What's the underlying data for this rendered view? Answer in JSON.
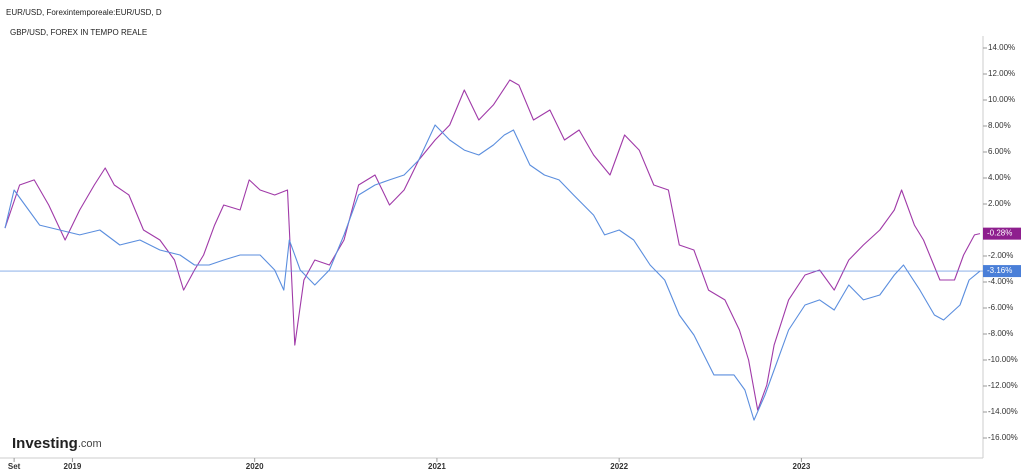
{
  "chart_data": {
    "type": "line",
    "title": "EUR/USD, Forexintemporeale:EUR/USD, D",
    "subtitle": "GBP/USD, FOREX IN TEMPO REALE",
    "brand": "Investing",
    "brand_suffix": ".com",
    "xlim": [
      2018.63,
      2023.98
    ],
    "xticks": [
      {
        "value": 2018.68,
        "label": "Set"
      },
      2019,
      2020,
      2021,
      2022,
      2023
    ],
    "ylim": [
      -17,
      15
    ],
    "yticks": [
      {
        "value": 14,
        "label": "14.00%"
      },
      {
        "value": 12,
        "label": "12.00%"
      },
      {
        "value": 10,
        "label": "10.00%"
      },
      {
        "value": 8,
        "label": "8.00%"
      },
      {
        "value": 6,
        "label": "6.00%"
      },
      {
        "value": 4,
        "label": "4.00%"
      },
      {
        "value": 2,
        "label": "2.00%"
      },
      {
        "value": -2,
        "label": "-2.00%"
      },
      {
        "value": -4,
        "label": "-4.00%"
      },
      {
        "value": -6,
        "label": "-6.00%"
      },
      {
        "value": -8,
        "label": "-8.00%"
      },
      {
        "value": -10,
        "label": "-10.00%"
      },
      {
        "value": -12,
        "label": "-12.00%"
      },
      {
        "value": -14,
        "label": "-14.00%"
      },
      {
        "value": -16,
        "label": "-16.00%"
      }
    ],
    "grid": false,
    "series": [
      {
        "name": "GBP/USD",
        "color": "#a03aa8",
        "label_color": "#8e1f8e",
        "end_label": "-0.28%",
        "x": [
          2018.63,
          2018.71,
          2018.79,
          2018.87,
          2018.96,
          2019.04,
          2019.12,
          2019.18,
          2019.23,
          2019.31,
          2019.39,
          2019.48,
          2019.56,
          2019.61,
          2019.67,
          2019.72,
          2019.78,
          2019.83,
          2019.92,
          2019.97,
          2020.03,
          2020.11,
          2020.18,
          2020.22,
          2020.27,
          2020.33,
          2020.41,
          2020.49,
          2020.57,
          2020.66,
          2020.74,
          2020.82,
          2020.9,
          2020.99,
          2021.07,
          2021.15,
          2021.23,
          2021.31,
          2021.4,
          2021.45,
          2021.53,
          2021.62,
          2021.7,
          2021.78,
          2021.86,
          2021.95,
          2022.03,
          2022.11,
          2022.19,
          2022.27,
          2022.33,
          2022.41,
          2022.49,
          2022.58,
          2022.66,
          2022.71,
          2022.76,
          2022.81,
          2022.85,
          2022.93,
          2023.02,
          2023.1,
          2023.18,
          2023.26,
          2023.34,
          2023.43,
          2023.51,
          2023.55,
          2023.62,
          2023.67,
          2023.76,
          2023.84,
          2023.89,
          2023.95,
          2023.98
        ],
        "values": [
          0.15,
          3.46,
          3.85,
          1.92,
          -0.77,
          1.54,
          3.46,
          4.77,
          3.46,
          2.69,
          0,
          -0.77,
          -2.31,
          -4.62,
          -3.08,
          -1.92,
          0.38,
          1.92,
          1.54,
          3.85,
          3.08,
          2.69,
          3.08,
          -8.85,
          -3.85,
          -2.31,
          -2.69,
          -0.77,
          3.46,
          4.23,
          1.92,
          3.08,
          5.38,
          6.92,
          8.08,
          10.77,
          8.46,
          9.62,
          11.54,
          11.15,
          8.46,
          9.23,
          6.92,
          7.69,
          5.77,
          4.23,
          7.31,
          6.15,
          3.46,
          3.08,
          -1.15,
          -1.54,
          -4.62,
          -5.38,
          -7.69,
          -10.0,
          -13.85,
          -11.92,
          -8.85,
          -5.38,
          -3.46,
          -3.08,
          -4.62,
          -2.31,
          -1.15,
          0,
          1.54,
          3.08,
          0.38,
          -0.77,
          -3.85,
          -3.85,
          -1.92,
          -0.38,
          -0.28
        ]
      },
      {
        "name": "EUR/USD",
        "color": "#5b8ede",
        "label_color": "#4a7fd8",
        "end_label": "-3.16%",
        "x": [
          2018.63,
          2018.68,
          2018.74,
          2018.82,
          2018.93,
          2019.04,
          2019.15,
          2019.26,
          2019.37,
          2019.48,
          2019.59,
          2019.67,
          2019.75,
          2019.83,
          2019.92,
          2020.03,
          2020.11,
          2020.16,
          2020.19,
          2020.25,
          2020.33,
          2020.41,
          2020.49,
          2020.57,
          2020.66,
          2020.74,
          2020.82,
          2020.9,
          2020.99,
          2021.07,
          2021.15,
          2021.23,
          2021.31,
          2021.37,
          2021.42,
          2021.51,
          2021.59,
          2021.67,
          2021.75,
          2021.86,
          2021.92,
          2022.0,
          2022.08,
          2022.17,
          2022.25,
          2022.33,
          2022.41,
          2022.52,
          2022.63,
          2022.69,
          2022.74,
          2022.8,
          2022.85,
          2022.93,
          2023.02,
          2023.1,
          2023.18,
          2023.26,
          2023.34,
          2023.43,
          2023.51,
          2023.56,
          2023.65,
          2023.73,
          2023.78,
          2023.87,
          2023.92,
          2023.98
        ],
        "values": [
          0.15,
          3.08,
          1.92,
          0.38,
          0,
          -0.38,
          0,
          -1.15,
          -0.77,
          -1.54,
          -1.92,
          -2.69,
          -2.69,
          -2.31,
          -1.92,
          -1.92,
          -3.08,
          -4.62,
          -0.77,
          -3.08,
          -4.23,
          -3.08,
          -0.38,
          2.69,
          3.46,
          3.85,
          4.23,
          5.38,
          8.08,
          6.92,
          6.15,
          5.77,
          6.54,
          7.31,
          7.69,
          5.0,
          4.23,
          3.85,
          2.69,
          1.15,
          -0.38,
          0,
          -0.77,
          -2.69,
          -3.85,
          -6.54,
          -8.08,
          -11.15,
          -11.15,
          -12.31,
          -14.62,
          -12.69,
          -10.77,
          -7.69,
          -5.77,
          -5.38,
          -6.15,
          -4.23,
          -5.38,
          -5.0,
          -3.46,
          -2.69,
          -4.62,
          -6.54,
          -6.92,
          -5.77,
          -3.85,
          -3.16
        ]
      }
    ]
  }
}
